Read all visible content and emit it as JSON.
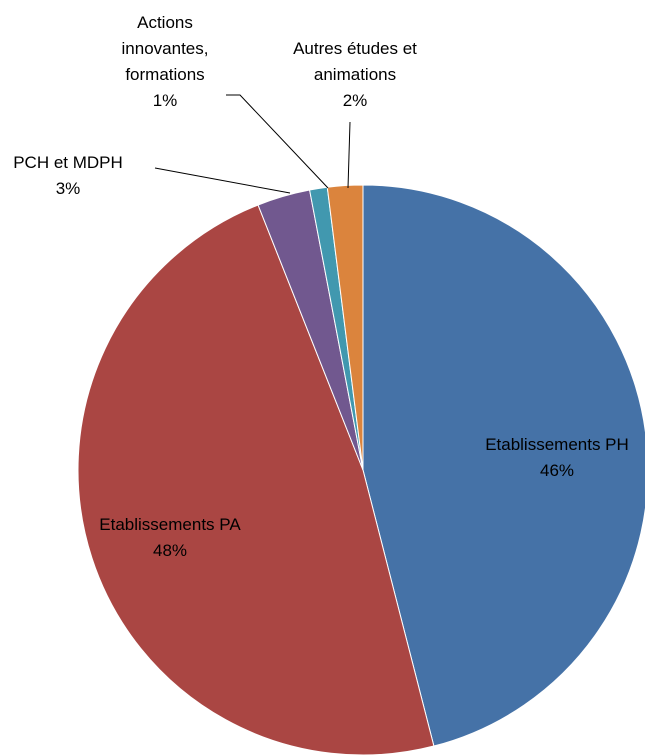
{
  "chart_data": {
    "type": "pie",
    "categories": [
      "Etablissements PH",
      "Etablissements PA",
      "PCH et MDPH",
      "Actions innovantes, formations",
      "Autres études et animations"
    ],
    "values": [
      46,
      48,
      3,
      1,
      2
    ],
    "value_labels": [
      "46%",
      "48%",
      "3%",
      "1%",
      "2%"
    ],
    "colors": [
      "#4572a7",
      "#aa4643",
      "#71588f",
      "#4198af",
      "#db843d"
    ]
  }
}
